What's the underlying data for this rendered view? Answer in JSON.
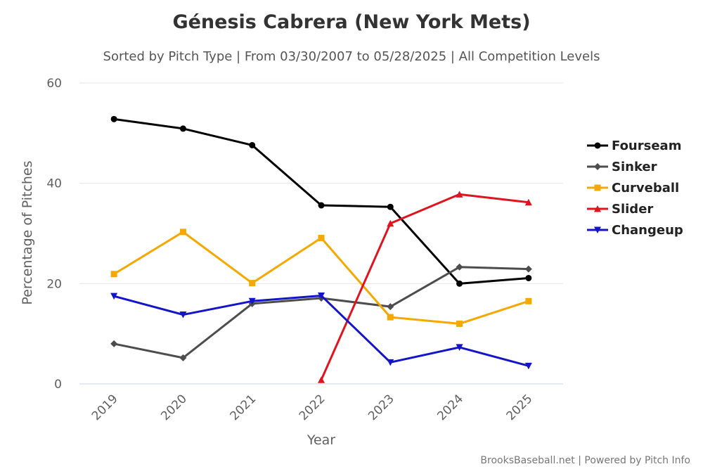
{
  "chart_data": {
    "type": "line",
    "title": "Génesis Cabrera (New York Mets)",
    "subtitle": "Sorted by Pitch Type | From 03/30/2007 to 05/28/2025 | All Competition Levels",
    "xlabel": "Year",
    "ylabel": "Percentage of Pitches",
    "categories": [
      "2019",
      "2020",
      "2021",
      "2022",
      "2023",
      "2024",
      "2025"
    ],
    "ylim": [
      0,
      60
    ],
    "yticks": [
      0,
      20,
      40,
      60
    ],
    "grid": true,
    "legend_position": "right",
    "series": [
      {
        "name": "Fourseam",
        "color": "#000000",
        "marker": "circle",
        "values": [
          52.8,
          50.9,
          47.6,
          35.6,
          35.3,
          20.0,
          21.1
        ]
      },
      {
        "name": "Sinker",
        "color": "#4d4d4d",
        "marker": "diamond",
        "values": [
          8.0,
          5.2,
          16.0,
          17.1,
          15.4,
          23.3,
          22.9
        ]
      },
      {
        "name": "Curveball",
        "color": "#f5a800",
        "marker": "square",
        "values": [
          21.9,
          30.3,
          20.1,
          29.1,
          13.3,
          12.0,
          16.5
        ]
      },
      {
        "name": "Slider",
        "color": "#e0141e",
        "marker": "triangle",
        "values": [
          null,
          null,
          null,
          0.8,
          32.0,
          37.8,
          36.2
        ]
      },
      {
        "name": "Changeup",
        "color": "#1414c8",
        "marker": "triangle-down",
        "values": [
          17.5,
          13.8,
          16.5,
          17.6,
          4.3,
          7.3,
          3.6
        ]
      }
    ],
    "credits": "BrooksBaseball.net | Powered by Pitch Info"
  }
}
